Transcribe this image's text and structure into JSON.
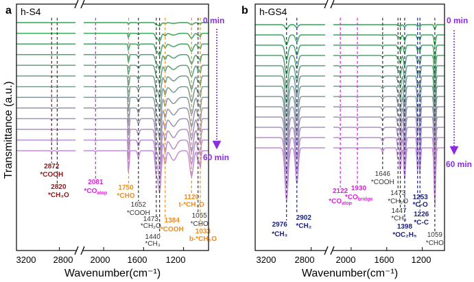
{
  "chart_data": [
    {
      "type": "line",
      "panel_label": "a",
      "title": "h-S4",
      "xlabel": "Wavenumber(cm⁻¹)",
      "ylabel": "Transmittance (a.u.)",
      "time_start": "0 min",
      "time_end": "60 min",
      "n_traces": 13,
      "x_segments": [
        [
          3200,
          2650
        ],
        [
          2200,
          950
        ]
      ],
      "x_ticks": [
        3200,
        2800,
        2000,
        1600,
        1200
      ],
      "bands": [
        {
          "pos": 2872,
          "lines": [
            "2872",
            "*COOH"
          ],
          "color": "#8b1a1a"
        },
        {
          "pos": 2820,
          "lines": [
            "2820",
            "*CH₃O"
          ],
          "color": "#8b1a1a"
        },
        {
          "pos": 2081,
          "lines": [
            "2081",
            "*COatop"
          ],
          "color": "#e020e0"
        },
        {
          "pos": 1750,
          "lines": [
            "1750",
            "*CHO"
          ],
          "color": "#f08c1e"
        },
        {
          "pos": 1652,
          "lines": [
            "1652",
            "*COOH"
          ],
          "color": "#333333"
        },
        {
          "pos": 1473,
          "lines": [
            "1473",
            "*CH₂O"
          ],
          "color": "#333333"
        },
        {
          "pos": 1440,
          "lines": [
            "1440",
            "*CH₃"
          ],
          "color": "#333333"
        },
        {
          "pos": 1384,
          "lines": [
            "1384",
            "*COOH"
          ],
          "color": "#f08c1e"
        },
        {
          "pos": 1120,
          "lines": [
            "1120",
            "t-*CH₃O"
          ],
          "color": "#f08c1e"
        },
        {
          "pos": 1055,
          "lines": [
            "1055",
            "*CHO"
          ],
          "color": "#333333"
        },
        {
          "pos": 1033,
          "lines": [
            "1033",
            "b-*CH₃O"
          ],
          "color": "#f08c1e"
        }
      ]
    },
    {
      "type": "line",
      "panel_label": "b",
      "title": "h-GS4",
      "xlabel": "Wavenumber(cm⁻¹)",
      "ylabel": "",
      "time_start": "0 min",
      "time_end": "60 min",
      "n_traces": 13,
      "x_segments": [
        [
          3200,
          2700
        ],
        [
          2200,
          950
        ]
      ],
      "x_ticks": [
        3200,
        2800,
        2000,
        1600,
        1200
      ],
      "bands": [
        {
          "pos": 2976,
          "lines": [
            "2976",
            "*CH₃"
          ],
          "color": "#1a237e"
        },
        {
          "pos": 2902,
          "lines": [
            "2902",
            "*CH₂"
          ],
          "color": "#1a237e"
        },
        {
          "pos": 2122,
          "lines": [
            "2122",
            "*COatop"
          ],
          "color": "#e020e0"
        },
        {
          "pos": 1930,
          "lines": [
            "1930",
            "*CObridge"
          ],
          "color": "#e020e0"
        },
        {
          "pos": 1646,
          "lines": [
            "1646",
            "*COOH"
          ],
          "color": "#333333"
        },
        {
          "pos": 1473,
          "lines": [
            "1473",
            "*CH₂O"
          ],
          "color": "#333333"
        },
        {
          "pos": 1447,
          "lines": [
            "1447",
            "*CH₃"
          ],
          "color": "#333333"
        },
        {
          "pos": 1398,
          "lines": [
            "1398",
            "*OC₂H₅"
          ],
          "color": "#1a237e"
        },
        {
          "pos": 1253,
          "lines": [
            "1253",
            "*C-O"
          ],
          "color": "#1a237e"
        },
        {
          "pos": 1226,
          "lines": [
            "1226",
            "*C-C"
          ],
          "color": "#1a237e"
        },
        {
          "pos": 1059,
          "lines": [
            "1059",
            "*CHO"
          ],
          "color": "#333333"
        }
      ]
    }
  ],
  "colors": {
    "trace_first": "#2aa84a",
    "trace_last": "#c48bd8",
    "arrow": "#8a2be2",
    "axis": "#000000"
  }
}
